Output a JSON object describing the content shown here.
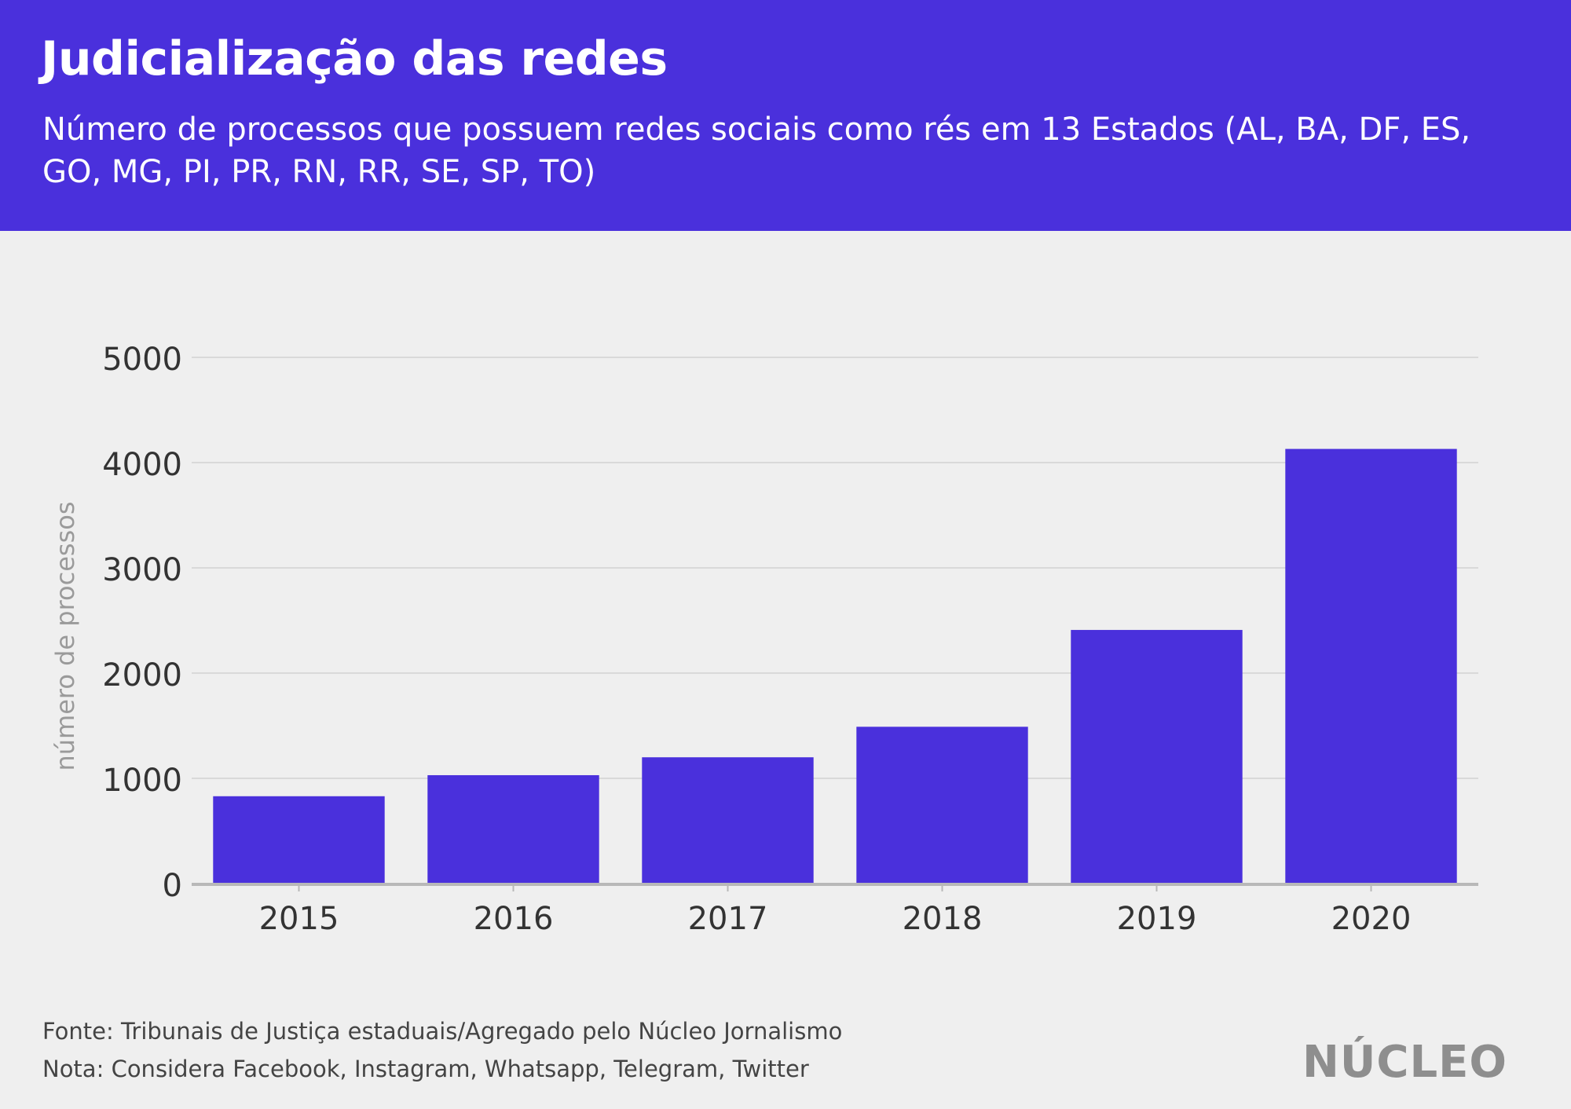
{
  "header": {
    "title": "Judicialização das redes",
    "subtitle": "Número de processos que possuem redes sociais como rés em 13 Estados (AL, BA, DF, ES, GO, MG, PI, PR, RN, RR, SE, SP, TO)"
  },
  "chart_data": {
    "type": "bar",
    "categories": [
      "2015",
      "2016",
      "2017",
      "2018",
      "2019",
      "2020"
    ],
    "values": [
      830,
      1030,
      1200,
      1490,
      2410,
      4130
    ],
    "ylabel": "número de processos",
    "xlabel": "",
    "ylim": [
      0,
      5000
    ],
    "yticks": [
      "0",
      "1000",
      "2000",
      "3000",
      "4000",
      "5000"
    ],
    "grid": true,
    "colors": {
      "bar": "#4a30dc",
      "grid": "#d9d9d9",
      "axis": "#b8b8b8"
    }
  },
  "footer": {
    "source": "Fonte: Tribunais de Justiça estaduais/Agregado pelo Núcleo Jornalismo",
    "note": "Nota: Considera Facebook, Instagram, Whatsapp, Telegram, Twitter"
  },
  "brand": {
    "logo_text": "NÚCLEO"
  }
}
